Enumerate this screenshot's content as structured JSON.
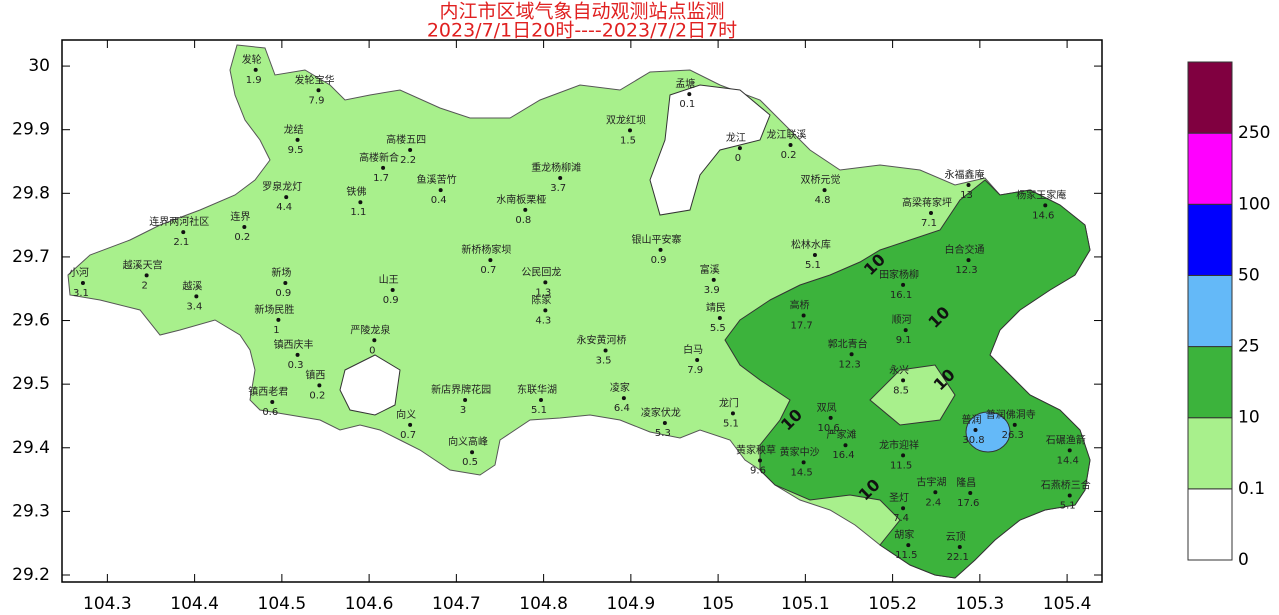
{
  "title": "内江市区域气象自动观测站点监测",
  "subtitle": "2023/7/1日20时----2023/7/2日7时",
  "xlim": [
    104.248,
    105.44
  ],
  "ylim": [
    29.189,
    30.041
  ],
  "xticks": [
    104.3,
    104.4,
    104.5,
    104.6,
    104.7,
    104.8,
    104.9,
    105,
    105.1,
    105.2,
    105.3,
    105.4
  ],
  "yticks": [
    29.2,
    29.3,
    29.4,
    29.5,
    29.6,
    29.7,
    29.8,
    29.9,
    30
  ],
  "legend": {
    "levels": [
      0,
      0.1,
      10,
      25,
      50,
      100,
      250
    ],
    "colors": [
      "#ffffff",
      "#a8f08c",
      "#3cb33c",
      "#64b9f8",
      "#0000fe",
      "#ff00ff",
      "#800040"
    ]
  },
  "contour_labels": [
    {
      "value": 10,
      "lon": 105.18,
      "lat": 29.687
    },
    {
      "value": 10,
      "lon": 105.254,
      "lat": 29.604
    },
    {
      "value": 10,
      "lon": 105.26,
      "lat": 29.506
    },
    {
      "value": 10,
      "lon": 105.085,
      "lat": 29.443
    },
    {
      "value": 10,
      "lon": 105.174,
      "lat": 29.333
    }
  ],
  "stations": [
    {
      "name": "发轮",
      "lon": 104.47,
      "lat": 29.994,
      "value": 1.9
    },
    {
      "name": "发轮宝华",
      "lon": 104.542,
      "lat": 29.962,
      "value": 7.9
    },
    {
      "name": "龙结",
      "lon": 104.518,
      "lat": 29.884,
      "value": 9.5
    },
    {
      "name": "高楼五四",
      "lon": 104.647,
      "lat": 29.868,
      "value": 2.2
    },
    {
      "name": "高楼新合",
      "lon": 104.616,
      "lat": 29.84,
      "value": 1.7
    },
    {
      "name": "罗泉龙灯",
      "lon": 104.505,
      "lat": 29.794,
      "value": 4.4
    },
    {
      "name": "铁佛",
      "lon": 104.59,
      "lat": 29.786,
      "value": 1.1
    },
    {
      "name": "鱼溪苦竹",
      "lon": 104.682,
      "lat": 29.805,
      "value": 0.4
    },
    {
      "name": "连界",
      "lon": 104.457,
      "lat": 29.747,
      "value": 0.2
    },
    {
      "name": "连界两河社区",
      "lon": 104.387,
      "lat": 29.739,
      "value": 2.1
    },
    {
      "name": "越溪天宫",
      "lon": 104.345,
      "lat": 29.671,
      "value": 2
    },
    {
      "name": "小河",
      "lon": 104.272,
      "lat": 29.659,
      "value": 3.1
    },
    {
      "name": "越溪",
      "lon": 104.402,
      "lat": 29.638,
      "value": 3.4
    },
    {
      "name": "新场",
      "lon": 104.504,
      "lat": 29.659,
      "value": 0.9
    },
    {
      "name": "新场民胜",
      "lon": 104.496,
      "lat": 29.601,
      "value": 1
    },
    {
      "name": "山王",
      "lon": 104.627,
      "lat": 29.648,
      "value": 0.9
    },
    {
      "name": "严陵龙泉",
      "lon": 104.606,
      "lat": 29.569,
      "value": 0
    },
    {
      "name": "镇西庆丰",
      "lon": 104.518,
      "lat": 29.546,
      "value": 0.3
    },
    {
      "name": "镇西",
      "lon": 104.543,
      "lat": 29.498,
      "value": 0.2
    },
    {
      "name": "镇西老君",
      "lon": 104.489,
      "lat": 29.472,
      "value": 0.6
    },
    {
      "name": "向义",
      "lon": 104.647,
      "lat": 29.436,
      "value": 0.7
    },
    {
      "name": "向义高峰",
      "lon": 104.718,
      "lat": 29.393,
      "value": 0.5
    },
    {
      "name": "新店界牌花园",
      "lon": 104.71,
      "lat": 29.475,
      "value": 3
    },
    {
      "name": "东联华湖",
      "lon": 104.797,
      "lat": 29.475,
      "value": 5.1
    },
    {
      "name": "永安黄河桥",
      "lon": 104.871,
      "lat": 29.553,
      "value": 3.5
    },
    {
      "name": "凌家",
      "lon": 104.892,
      "lat": 29.478,
      "value": 6.4
    },
    {
      "name": "凌家伏龙",
      "lon": 104.939,
      "lat": 29.439,
      "value": 5.3
    },
    {
      "name": "龙门",
      "lon": 105.017,
      "lat": 29.454,
      "value": 5.1
    },
    {
      "name": "白马",
      "lon": 104.976,
      "lat": 29.538,
      "value": 7.9
    },
    {
      "name": "靖民",
      "lon": 105.002,
      "lat": 29.604,
      "value": 5.5
    },
    {
      "name": "富溪",
      "lon": 104.995,
      "lat": 29.664,
      "value": 3.9
    },
    {
      "name": "陈家",
      "lon": 104.802,
      "lat": 29.616,
      "value": 4.3
    },
    {
      "name": "公民回龙",
      "lon": 104.802,
      "lat": 29.66,
      "value": 1.3
    },
    {
      "name": "新桥杨家坝",
      "lon": 104.739,
      "lat": 29.695,
      "value": 0.7
    },
    {
      "name": "水南板栗桠",
      "lon": 104.779,
      "lat": 29.774,
      "value": 0.8
    },
    {
      "name": "银山平安寨",
      "lon": 104.934,
      "lat": 29.711,
      "value": 0.9
    },
    {
      "name": "重龙杨柳滩",
      "lon": 104.819,
      "lat": 29.824,
      "value": 3.7
    },
    {
      "name": "双龙红坝",
      "lon": 104.899,
      "lat": 29.899,
      "value": 1.5
    },
    {
      "name": "孟塘",
      "lon": 104.967,
      "lat": 29.956,
      "value": 0.1
    },
    {
      "name": "龙江",
      "lon": 105.025,
      "lat": 29.871,
      "value": 0
    },
    {
      "name": "龙江联溪",
      "lon": 105.083,
      "lat": 29.876,
      "value": 0.2
    },
    {
      "name": "双桥元觉",
      "lon": 105.122,
      "lat": 29.805,
      "value": 4.8
    },
    {
      "name": "松林水库",
      "lon": 105.111,
      "lat": 29.703,
      "value": 5.1
    },
    {
      "name": "高桥",
      "lon": 105.098,
      "lat": 29.608,
      "value": 17.7
    },
    {
      "name": "郭北青台",
      "lon": 105.153,
      "lat": 29.547,
      "value": 12.3
    },
    {
      "name": "双凤",
      "lon": 105.129,
      "lat": 29.447,
      "value": 10.6
    },
    {
      "name": "严家滩",
      "lon": 105.146,
      "lat": 29.404,
      "value": 16.4
    },
    {
      "name": "黄家中沙",
      "lon": 105.098,
      "lat": 29.377,
      "value": 14.5
    },
    {
      "name": "黄家秧草",
      "lon": 105.048,
      "lat": 29.38,
      "value": 9.6
    },
    {
      "name": "龙市迎祥",
      "lon": 105.212,
      "lat": 29.388,
      "value": 11.5
    },
    {
      "name": "圣灯",
      "lon": 105.212,
      "lat": 29.305,
      "value": 7.4
    },
    {
      "name": "古宇湖",
      "lon": 105.249,
      "lat": 29.33,
      "value": 2.4
    },
    {
      "name": "胡家",
      "lon": 105.218,
      "lat": 29.247,
      "value": 11.5
    },
    {
      "name": "云顶",
      "lon": 105.277,
      "lat": 29.244,
      "value": 22.1
    },
    {
      "name": "隆昌",
      "lon": 105.289,
      "lat": 29.329,
      "value": 17.6
    },
    {
      "name": "石碾渔箭",
      "lon": 105.403,
      "lat": 29.396,
      "value": 14.4
    },
    {
      "name": "石燕桥三合",
      "lon": 105.403,
      "lat": 29.325,
      "value": 5.1
    },
    {
      "name": "普润佛洞寺",
      "lon": 105.34,
      "lat": 29.436,
      "value": 26.3
    },
    {
      "name": "普润",
      "lon": 105.295,
      "lat": 29.428,
      "value": 30.8
    },
    {
      "name": "永兴",
      "lon": 105.212,
      "lat": 29.506,
      "value": 8.5
    },
    {
      "name": "顺河",
      "lon": 105.215,
      "lat": 29.585,
      "value": 9.1
    },
    {
      "name": "田家杨柳",
      "lon": 105.212,
      "lat": 29.656,
      "value": 16.1
    },
    {
      "name": "白合交通",
      "lon": 105.287,
      "lat": 29.695,
      "value": 12.3
    },
    {
      "name": "永福鑫庵",
      "lon": 105.287,
      "lat": 29.813,
      "value": 13
    },
    {
      "name": "杨家王家庵",
      "lon": 105.375,
      "lat": 29.781,
      "value": 14.6
    },
    {
      "name": "高梁蒋家坪",
      "lon": 105.244,
      "lat": 29.769,
      "value": 7.1
    }
  ]
}
